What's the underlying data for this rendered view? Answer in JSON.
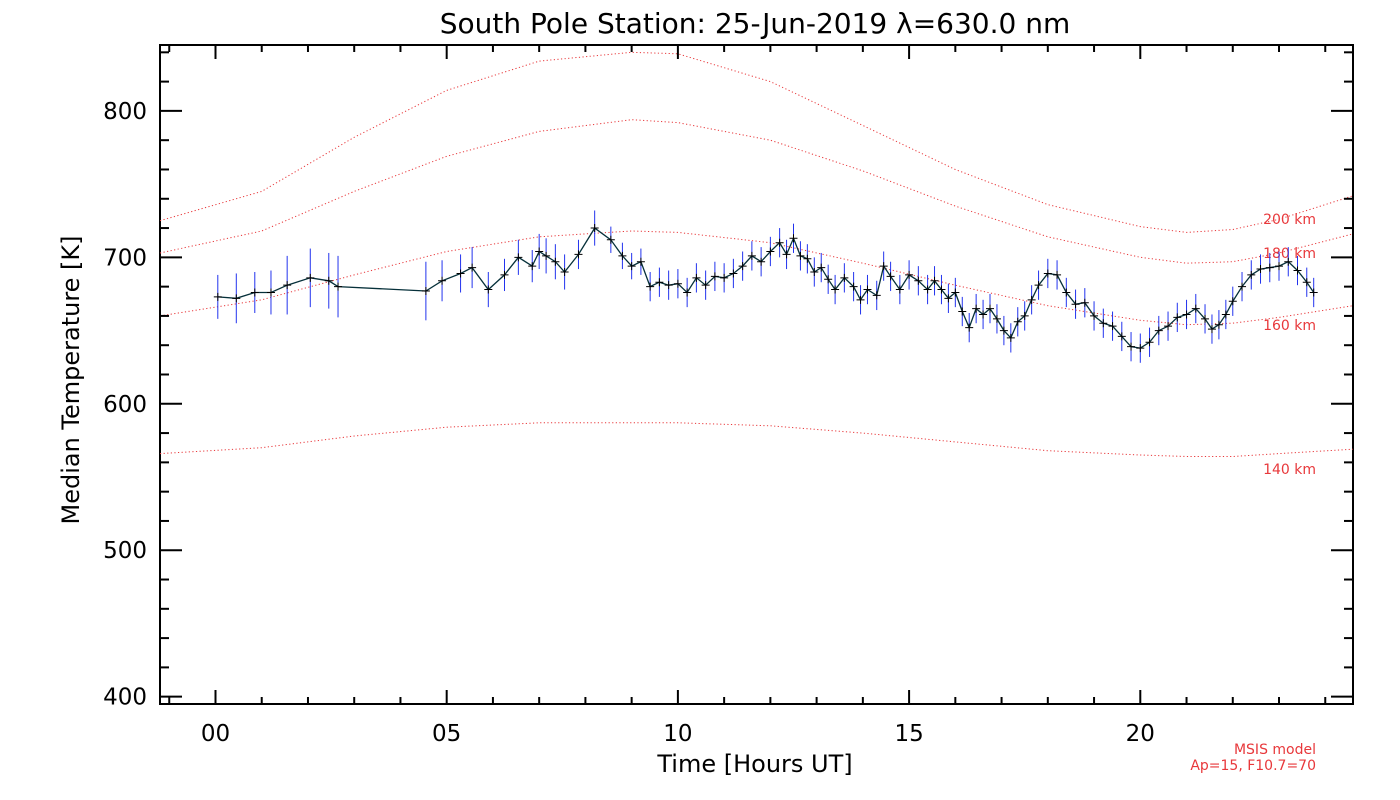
{
  "chart_data": {
    "type": "line",
    "title": "South Pole Station: 25-Jun-2019 λ=630.0 nm",
    "xlabel": "Time [Hours UT]",
    "ylabel": "Median Temperature [K]",
    "xlim": [
      -1.2,
      24.6
    ],
    "ylim": [
      395,
      845
    ],
    "xticks": [
      0,
      5,
      10,
      15,
      20
    ],
    "xtick_labels": [
      "00",
      "05",
      "10",
      "15",
      "20"
    ],
    "yticks": [
      400,
      500,
      600,
      700,
      800
    ],
    "ytick_labels": [
      "400",
      "500",
      "600",
      "700",
      "800"
    ],
    "grid": false,
    "colors": {
      "data_line": "#06303a",
      "error_bars": "#2233ee",
      "model": "#e8383b",
      "axes": "#000000"
    },
    "model_note": [
      "MSIS model",
      "Ap=15, F10.7=70"
    ],
    "model_curves": [
      {
        "label": "200 km",
        "label_at": 219,
        "points": [
          [
            -1.2,
            725
          ],
          [
            1,
            745
          ],
          [
            3,
            782
          ],
          [
            5,
            814
          ],
          [
            7,
            834
          ],
          [
            9,
            840
          ],
          [
            10,
            839
          ],
          [
            12,
            820
          ],
          [
            14,
            790
          ],
          [
            16,
            760
          ],
          [
            18,
            736
          ],
          [
            20,
            721
          ],
          [
            21,
            717
          ],
          [
            22,
            719
          ],
          [
            23,
            726
          ],
          [
            24.6,
            742
          ]
        ]
      },
      {
        "label": "180 km",
        "label_at": 253,
        "points": [
          [
            -1.2,
            703
          ],
          [
            1,
            718
          ],
          [
            3,
            745
          ],
          [
            5,
            769
          ],
          [
            7,
            786
          ],
          [
            9,
            794
          ],
          [
            10,
            792
          ],
          [
            12,
            780
          ],
          [
            14,
            759
          ],
          [
            16,
            735
          ],
          [
            18,
            714
          ],
          [
            20,
            700
          ],
          [
            21,
            696
          ],
          [
            22,
            697
          ],
          [
            23,
            703
          ],
          [
            24.6,
            716
          ]
        ]
      },
      {
        "label": "160 km",
        "label_at": 325,
        "points": [
          [
            -1.2,
            660
          ],
          [
            1,
            671
          ],
          [
            3,
            688
          ],
          [
            5,
            704
          ],
          [
            7,
            714
          ],
          [
            9,
            718
          ],
          [
            10,
            717
          ],
          [
            12,
            710
          ],
          [
            14,
            696
          ],
          [
            16,
            681
          ],
          [
            18,
            667
          ],
          [
            20,
            657
          ],
          [
            21,
            654
          ],
          [
            22,
            655
          ],
          [
            23,
            659
          ],
          [
            24.6,
            667
          ]
        ]
      },
      {
        "label": "140 km",
        "label_at": 469,
        "points": [
          [
            -1.2,
            566
          ],
          [
            1,
            570
          ],
          [
            3,
            578
          ],
          [
            5,
            584
          ],
          [
            7,
            587
          ],
          [
            9,
            587
          ],
          [
            10,
            587
          ],
          [
            12,
            585
          ],
          [
            14,
            580
          ],
          [
            16,
            574
          ],
          [
            18,
            568
          ],
          [
            20,
            565
          ],
          [
            21,
            564
          ],
          [
            22,
            564
          ],
          [
            23,
            566
          ],
          [
            24.6,
            569
          ]
        ]
      }
    ],
    "series": [
      {
        "name": "Median Temperature",
        "points": [
          [
            0.05,
            673,
            15
          ],
          [
            0.45,
            672,
            17
          ],
          [
            0.85,
            676,
            14
          ],
          [
            1.2,
            676,
            15
          ],
          [
            1.55,
            681,
            20
          ],
          [
            2.05,
            686,
            20
          ],
          [
            2.45,
            684,
            19
          ],
          [
            2.65,
            680,
            21
          ],
          [
            4.55,
            677,
            20
          ],
          [
            4.9,
            684,
            14
          ],
          [
            5.3,
            689,
            13
          ],
          [
            5.55,
            693,
            14
          ],
          [
            5.9,
            678,
            12
          ],
          [
            6.25,
            688,
            11
          ],
          [
            6.55,
            700,
            12
          ],
          [
            6.85,
            694,
            11
          ],
          [
            7.0,
            704,
            12
          ],
          [
            7.15,
            701,
            12
          ],
          [
            7.35,
            697,
            12
          ],
          [
            7.55,
            690,
            12
          ],
          [
            7.85,
            702,
            10
          ],
          [
            8.2,
            720,
            12
          ],
          [
            8.55,
            712,
            9
          ],
          [
            8.8,
            701,
            9
          ],
          [
            9.0,
            694,
            9
          ],
          [
            9.2,
            697,
            9
          ],
          [
            9.4,
            680,
            10
          ],
          [
            9.6,
            683,
            10
          ],
          [
            9.8,
            681,
            10
          ],
          [
            10.0,
            682,
            10
          ],
          [
            10.2,
            676,
            10
          ],
          [
            10.4,
            686,
            10
          ],
          [
            10.6,
            681,
            10
          ],
          [
            10.8,
            687,
            10
          ],
          [
            11.0,
            686,
            10
          ],
          [
            11.2,
            689,
            10
          ],
          [
            11.4,
            694,
            10
          ],
          [
            11.6,
            701,
            10
          ],
          [
            11.8,
            697,
            10
          ],
          [
            12.0,
            704,
            10
          ],
          [
            12.2,
            710,
            10
          ],
          [
            12.35,
            702,
            10
          ],
          [
            12.5,
            713,
            10
          ],
          [
            12.65,
            701,
            10
          ],
          [
            12.8,
            699,
            10
          ],
          [
            12.95,
            690,
            10
          ],
          [
            13.1,
            693,
            10
          ],
          [
            13.25,
            685,
            10
          ],
          [
            13.4,
            678,
            10
          ],
          [
            13.6,
            686,
            10
          ],
          [
            13.8,
            680,
            10
          ],
          [
            13.95,
            671,
            10
          ],
          [
            14.1,
            678,
            10
          ],
          [
            14.3,
            674,
            10
          ],
          [
            14.45,
            694,
            10
          ],
          [
            14.6,
            687,
            10
          ],
          [
            14.8,
            678,
            10
          ],
          [
            15.0,
            688,
            10
          ],
          [
            15.2,
            684,
            10
          ],
          [
            15.4,
            678,
            10
          ],
          [
            15.55,
            684,
            10
          ],
          [
            15.7,
            678,
            10
          ],
          [
            15.85,
            672,
            10
          ],
          [
            16.0,
            676,
            10
          ],
          [
            16.15,
            663,
            10
          ],
          [
            16.3,
            652,
            10
          ],
          [
            16.45,
            665,
            10
          ],
          [
            16.6,
            661,
            10
          ],
          [
            16.75,
            665,
            10
          ],
          [
            16.9,
            658,
            10
          ],
          [
            17.05,
            650,
            10
          ],
          [
            17.2,
            645,
            10
          ],
          [
            17.35,
            656,
            10
          ],
          [
            17.5,
            660,
            10
          ],
          [
            17.65,
            671,
            10
          ],
          [
            17.8,
            681,
            10
          ],
          [
            18.0,
            689,
            10
          ],
          [
            18.2,
            688,
            10
          ],
          [
            18.4,
            676,
            10
          ],
          [
            18.6,
            668,
            10
          ],
          [
            18.8,
            669,
            10
          ],
          [
            19.0,
            660,
            10
          ],
          [
            19.2,
            655,
            10
          ],
          [
            19.4,
            653,
            10
          ],
          [
            19.6,
            646,
            10
          ],
          [
            19.8,
            639,
            10
          ],
          [
            20.0,
            638,
            10
          ],
          [
            20.2,
            642,
            10
          ],
          [
            20.4,
            650,
            10
          ],
          [
            20.6,
            653,
            10
          ],
          [
            20.8,
            659,
            10
          ],
          [
            21.0,
            661,
            10
          ],
          [
            21.2,
            665,
            10
          ],
          [
            21.4,
            658,
            10
          ],
          [
            21.55,
            651,
            10
          ],
          [
            21.7,
            654,
            10
          ],
          [
            21.85,
            661,
            10
          ],
          [
            22.0,
            670,
            10
          ],
          [
            22.2,
            680,
            10
          ],
          [
            22.4,
            688,
            10
          ],
          [
            22.6,
            692,
            10
          ],
          [
            22.8,
            693,
            10
          ],
          [
            23.0,
            694,
            10
          ],
          [
            23.2,
            697,
            10
          ],
          [
            23.4,
            691,
            10
          ],
          [
            23.6,
            683,
            10
          ],
          [
            23.75,
            676,
            10
          ]
        ]
      }
    ]
  }
}
